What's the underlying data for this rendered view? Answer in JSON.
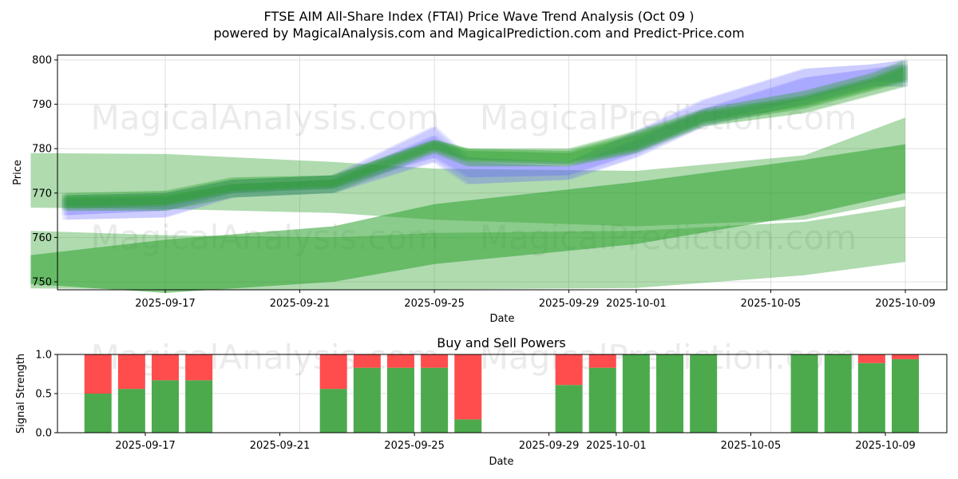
{
  "page": {
    "title": "FTSE AIM All-Share Index (FTAI) Price Wave Trend Analysis (Oct 09 )",
    "subtitle": "powered by MagicalAnalysis.com and MagicalPrediction.com and Predict-Price.com",
    "watermarks": [
      "MagicalAnalysis.com",
      "MagicalPrediction.com"
    ]
  },
  "colors": {
    "green_band": "#2ca02c",
    "blue_band": "#6666ff",
    "buy": "#4caa4c",
    "sell": "#ff4d4d",
    "grid": "#d9d9d9"
  },
  "chart_data": [
    {
      "type": "area",
      "title": "",
      "xlabel": "Date",
      "ylabel": "Price",
      "xlim": [
        "2025-09-13",
        "2025-10-10"
      ],
      "ylim": [
        748,
        801
      ],
      "x_ticks": [
        "2025-09-17",
        "2025-09-21",
        "2025-09-25",
        "2025-09-29",
        "2025-10-01",
        "2025-10-05",
        "2025-10-09"
      ],
      "y_ticks": [
        750,
        760,
        770,
        780,
        790,
        800
      ],
      "grid": true,
      "trend_dates": [
        "2025-09-14",
        "2025-09-17",
        "2025-09-19",
        "2025-09-22",
        "2025-09-25",
        "2025-09-26",
        "2025-09-29",
        "2025-10-01",
        "2025-10-03",
        "2025-10-06",
        "2025-10-08",
        "2025-10-09"
      ],
      "trend_bands": [
        {
          "name": "blue-1",
          "color": "blue",
          "upper": [
            769.5,
            770,
            773,
            774,
            785,
            778,
            777,
            784,
            791,
            798,
            799,
            800
          ],
          "lower": [
            764,
            764.5,
            769,
            770,
            777,
            772,
            773,
            778,
            785,
            790,
            794,
            794
          ]
        },
        {
          "name": "blue-2",
          "color": "blue",
          "upper": [
            768.5,
            769,
            772,
            773,
            783,
            777,
            776,
            782,
            789,
            796,
            798,
            799
          ],
          "lower": [
            765,
            766,
            770,
            771,
            778,
            773.5,
            774,
            779,
            786,
            791,
            795,
            795
          ]
        },
        {
          "name": "green-1",
          "color": "green",
          "upper": [
            770,
            770.5,
            773.5,
            774,
            782,
            780,
            780,
            784,
            789,
            793,
            797,
            800
          ],
          "lower": [
            766,
            766,
            769,
            770,
            779,
            776,
            776,
            779,
            785,
            788,
            792,
            794
          ]
        },
        {
          "name": "green-2",
          "color": "green",
          "upper": [
            769.5,
            770,
            773,
            774,
            782,
            780,
            779.5,
            783.5,
            788.5,
            792,
            796,
            799
          ],
          "lower": [
            766.5,
            767,
            770,
            771,
            779.5,
            777,
            776.5,
            779.5,
            785.5,
            789,
            793,
            795
          ]
        },
        {
          "name": "green-3",
          "color": "green",
          "upper": [
            769,
            769.5,
            772,
            773,
            781.5,
            779.5,
            779,
            783,
            788,
            791.5,
            795.5,
            798.5
          ],
          "lower": [
            767,
            767.5,
            770.5,
            771.5,
            780,
            777.5,
            777,
            780,
            786,
            789.5,
            793.5,
            795.5
          ]
        }
      ],
      "wave_bands": [
        {
          "name": "wave-1",
          "dates": [
            "2025-09-13",
            "2025-09-17",
            "2025-09-22",
            "2025-09-25",
            "2025-10-01",
            "2025-10-06",
            "2025-10-09"
          ],
          "upper": [
            779,
            778.8,
            777,
            775.5,
            775,
            778.5,
            787
          ],
          "lower": [
            766.7,
            766.4,
            765.5,
            764,
            762.5,
            764,
            768.5
          ]
        },
        {
          "name": "wave-2",
          "dates": [
            "2025-09-13",
            "2025-09-17",
            "2025-09-22",
            "2025-09-25",
            "2025-10-01",
            "2025-10-06",
            "2025-10-09"
          ],
          "upper": [
            756,
            759.5,
            762.5,
            767.5,
            772.5,
            777.5,
            781
          ],
          "lower": [
            749.5,
            747.5,
            750,
            754,
            758.5,
            765,
            770
          ]
        },
        {
          "name": "wave-3",
          "dates": [
            "2025-09-13",
            "2025-09-17",
            "2025-09-22",
            "2025-09-25",
            "2025-10-01",
            "2025-10-06",
            "2025-10-09"
          ],
          "upper": [
            761.5,
            760.5,
            760,
            761,
            761.5,
            763.5,
            767
          ]
        },
        {
          "name": "wave-3-lower",
          "dates": [
            "2025-09-13",
            "2025-09-17",
            "2025-09-22",
            "2025-09-25",
            "2025-10-01",
            "2025-10-06",
            "2025-10-09"
          ],
          "lower": [
            748.5,
            748.3,
            748.3,
            748.3,
            748.6,
            751.5,
            754.5
          ]
        }
      ]
    },
    {
      "type": "bar",
      "title": "Buy and Sell Powers",
      "xlabel": "Date",
      "ylabel": "Signal Strength",
      "ylim": [
        0,
        1
      ],
      "y_ticks": [
        "0.0",
        "0.5",
        "1.0"
      ],
      "x_ticks": [
        "2025-09-17",
        "2025-09-21",
        "2025-09-25",
        "2025-09-29",
        "2025-10-01",
        "2025-10-05",
        "2025-10-09"
      ],
      "grid": true,
      "dates": [
        "2025-09-15",
        "2025-09-16",
        "2025-09-17",
        "2025-09-18",
        "2025-09-22",
        "2025-09-23",
        "2025-09-24",
        "2025-09-25",
        "2025-09-26",
        "2025-09-29",
        "2025-09-30",
        "2025-10-01",
        "2025-10-02",
        "2025-10-03",
        "2025-10-06",
        "2025-10-07",
        "2025-10-08",
        "2025-10-09"
      ],
      "series": [
        {
          "name": "Buy",
          "values": [
            0.5,
            0.56,
            0.67,
            0.67,
            0.56,
            0.83,
            0.83,
            0.83,
            0.17,
            0.61,
            0.83,
            1.0,
            1.0,
            1.0,
            1.0,
            1.0,
            0.89,
            0.94
          ]
        },
        {
          "name": "Sell",
          "values": [
            0.5,
            0.44,
            0.33,
            0.33,
            0.44,
            0.17,
            0.17,
            0.17,
            0.83,
            0.39,
            0.17,
            0.0,
            0.0,
            0.0,
            0.0,
            0.0,
            0.11,
            0.06
          ]
        }
      ]
    }
  ]
}
